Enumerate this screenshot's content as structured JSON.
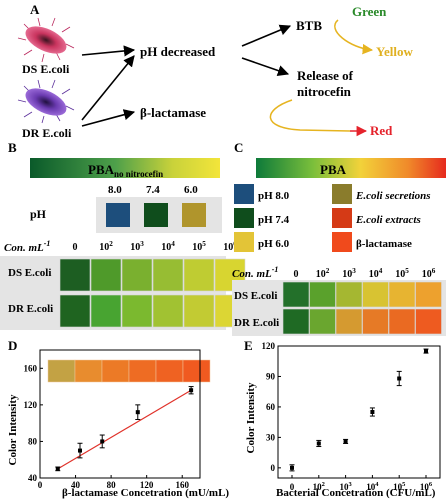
{
  "panel_a": {
    "label": "A",
    "ds_strain": "DS E.coli",
    "dr_strain": "DR E.coli",
    "ph_decreased": "pH decreased",
    "beta_lactamase": "β-lactamase",
    "btb": "BTB",
    "green": "Green",
    "yellow": "Yellow",
    "release_line1": "Release of",
    "release_line2": "nitrocefin",
    "red": "Red"
  },
  "panel_b": {
    "label": "B",
    "bar_title": "PBA",
    "bar_subscript": "no nitrocefin",
    "ph_label": "pH",
    "ph_values": [
      "8.0",
      "7.4",
      "6.0"
    ],
    "ph_colors": [
      "#1d4e7c",
      "#0f4d1c",
      "#b0952c"
    ],
    "conc_label": "Con. mL",
    "conc_exp": "-1",
    "conc_values": [
      "0",
      "10",
      "10",
      "10",
      "10",
      "10"
    ],
    "conc_exponents": [
      "",
      "2",
      "3",
      "4",
      "5",
      "6"
    ],
    "row_labels": [
      "DS E.coli",
      "DR E.coli"
    ],
    "row_colors": [
      [
        "#1d5e22",
        "#4f9a2a",
        "#7ab02f",
        "#97bd33",
        "#bfcc32",
        "#d8d530"
      ],
      [
        "#1f6420",
        "#48a431",
        "#7bb92f",
        "#a1c232",
        "#c2cb33",
        "#dcd634"
      ]
    ]
  },
  "panel_c": {
    "label": "C",
    "bar_title": "PBA",
    "legend": [
      {
        "text": "pH 8.0",
        "color": "#1d4e7c"
      },
      {
        "text": "pH 7.4",
        "color": "#0f4d1c"
      },
      {
        "text": "pH 6.0",
        "color": "#e3c437"
      },
      {
        "text": "E.coli secretions",
        "color": "#8a7c2c"
      },
      {
        "text": "E.coli extracts",
        "color": "#d53a16"
      },
      {
        "text": "β-lactamase",
        "color": "#f04a1c"
      }
    ],
    "conc_label": "Con. mL",
    "conc_exp": "-1",
    "conc_values": [
      "0",
      "10",
      "10",
      "10",
      "10",
      "10"
    ],
    "conc_exponents": [
      "",
      "2",
      "3",
      "4",
      "5",
      "6"
    ],
    "row_labels": [
      "DS E.coli",
      "DR E.coli"
    ],
    "row_colors": [
      [
        "#23702a",
        "#5aa12c",
        "#a5b731",
        "#d8c332",
        "#e7b431",
        "#eda12e"
      ],
      [
        "#1f6a24",
        "#6aa62f",
        "#d59a30",
        "#e67a26",
        "#ea6a22",
        "#ee5b20"
      ]
    ]
  },
  "panel_d": {
    "label": "D",
    "strip_colors": [
      "#c3a244",
      "#e88c2e",
      "#ec7a26",
      "#ee6c23",
      "#ef6222",
      "#f05a20"
    ],
    "chart_data": {
      "type": "scatter",
      "xlabel": "β-lactamase Concetration (mU/mL)",
      "ylabel": "Color Intensity",
      "xlim": [
        0,
        180
      ],
      "ylim": [
        40,
        180
      ],
      "xticks": [
        "0",
        "40",
        "80",
        "120",
        "160"
      ],
      "yticks": [
        "40",
        "80",
        "120",
        "160"
      ],
      "x": [
        20,
        45,
        70,
        110,
        170
      ],
      "y": [
        50,
        70,
        80,
        112,
        136
      ],
      "err": [
        2,
        8,
        7,
        8,
        4
      ],
      "fit": {
        "x": [
          20,
          170
        ],
        "y": [
          50,
          136
        ]
      }
    }
  },
  "panel_e": {
    "label": "E",
    "chart_data": {
      "type": "scatter",
      "xlabel": "Bacterial Concetration (CFU/mL)",
      "ylabel": "Color Intensity",
      "ylim": [
        -10,
        120
      ],
      "yticks": [
        "0",
        "30",
        "60",
        "90",
        "120"
      ],
      "categories": [
        "0",
        "10",
        "10",
        "10",
        "10",
        "10"
      ],
      "category_exponents": [
        "",
        "2",
        "3",
        "4",
        "5",
        "6"
      ],
      "y": [
        0,
        24,
        26,
        55,
        88,
        115
      ],
      "err": [
        3,
        3,
        2,
        4,
        7,
        2
      ]
    }
  }
}
